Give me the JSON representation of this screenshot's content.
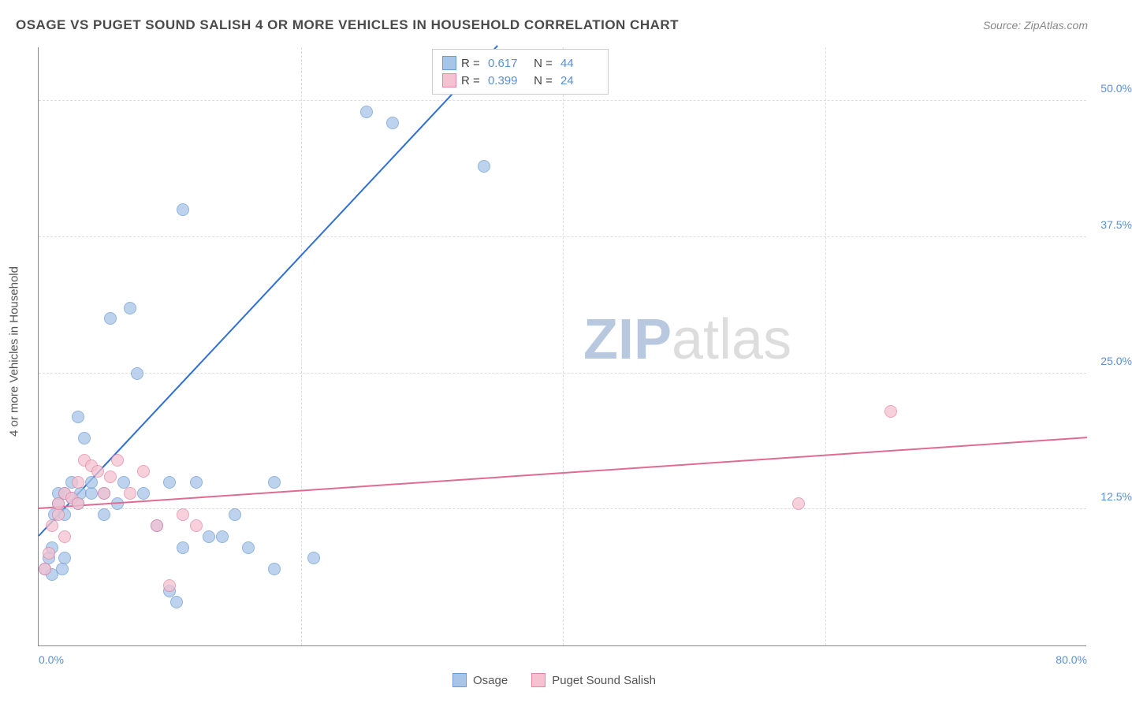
{
  "title": "OSAGE VS PUGET SOUND SALISH 4 OR MORE VEHICLES IN HOUSEHOLD CORRELATION CHART",
  "source": "Source: ZipAtlas.com",
  "ylabel": "4 or more Vehicles in Household",
  "watermark_bold": "ZIP",
  "watermark_thin": "atlas",
  "chart": {
    "type": "scatter",
    "xlim": [
      0,
      80
    ],
    "ylim": [
      0,
      55
    ],
    "xtick_labels": [
      {
        "pos": 0,
        "label": "0.0%"
      },
      {
        "pos": 80,
        "label": "80.0%"
      }
    ],
    "xtick_grid": [
      20,
      40,
      60
    ],
    "ytick_labels": [
      {
        "pos": 12.5,
        "label": "12.5%"
      },
      {
        "pos": 25,
        "label": "25.0%"
      },
      {
        "pos": 37.5,
        "label": "37.5%"
      },
      {
        "pos": 50,
        "label": "50.0%"
      }
    ],
    "background_color": "#ffffff",
    "grid_color": "#dddddd",
    "series": [
      {
        "name": "Osage",
        "fill": "#a8c5e8",
        "stroke": "#6b9bd1",
        "marker_radius": 8,
        "R": "0.617",
        "N": "44",
        "trend": {
          "x1": 0,
          "y1": 10,
          "x2": 35,
          "y2": 55,
          "color": "#2e6fd6"
        },
        "points": [
          [
            0.5,
            7
          ],
          [
            0.8,
            8
          ],
          [
            1,
            6.5
          ],
          [
            1,
            9
          ],
          [
            1.2,
            12
          ],
          [
            1.5,
            13
          ],
          [
            1.5,
            14
          ],
          [
            1.8,
            7
          ],
          [
            2,
            8
          ],
          [
            2,
            12
          ],
          [
            2,
            14
          ],
          [
            2.5,
            13.5
          ],
          [
            2.5,
            15
          ],
          [
            3,
            13
          ],
          [
            3,
            21
          ],
          [
            3.2,
            14
          ],
          [
            3.5,
            19
          ],
          [
            4,
            14
          ],
          [
            4,
            15
          ],
          [
            5,
            12
          ],
          [
            5,
            14
          ],
          [
            5.5,
            30
          ],
          [
            6,
            13
          ],
          [
            6.5,
            15
          ],
          [
            7,
            31
          ],
          [
            7.5,
            25
          ],
          [
            8,
            14
          ],
          [
            9,
            11
          ],
          [
            10,
            5
          ],
          [
            10,
            15
          ],
          [
            10.5,
            4
          ],
          [
            11,
            9
          ],
          [
            11,
            40
          ],
          [
            12,
            15
          ],
          [
            13,
            10
          ],
          [
            14,
            10
          ],
          [
            15,
            12
          ],
          [
            16,
            9
          ],
          [
            18,
            15
          ],
          [
            18,
            7
          ],
          [
            21,
            8
          ],
          [
            25,
            49
          ],
          [
            27,
            48
          ],
          [
            34,
            44
          ]
        ]
      },
      {
        "name": "Puget Sound Salish",
        "fill": "#f4c2d0",
        "stroke": "#e485a5",
        "marker_radius": 8,
        "R": "0.399",
        "N": "24",
        "trend": {
          "x1": 0,
          "y1": 12.5,
          "x2": 80,
          "y2": 19,
          "color": "#e06b92"
        },
        "points": [
          [
            0.5,
            7
          ],
          [
            0.8,
            8.5
          ],
          [
            1,
            11
          ],
          [
            1.5,
            12
          ],
          [
            1.5,
            13
          ],
          [
            2,
            10
          ],
          [
            2,
            14
          ],
          [
            2.5,
            13.5
          ],
          [
            3,
            13
          ],
          [
            3,
            15
          ],
          [
            3.5,
            17
          ],
          [
            4,
            16.5
          ],
          [
            4.5,
            16
          ],
          [
            5,
            14
          ],
          [
            5.5,
            15.5
          ],
          [
            6,
            17
          ],
          [
            7,
            14
          ],
          [
            8,
            16
          ],
          [
            9,
            11
          ],
          [
            10,
            5.5
          ],
          [
            11,
            12
          ],
          [
            12,
            11
          ],
          [
            58,
            13
          ],
          [
            65,
            21.5
          ]
        ]
      }
    ]
  }
}
